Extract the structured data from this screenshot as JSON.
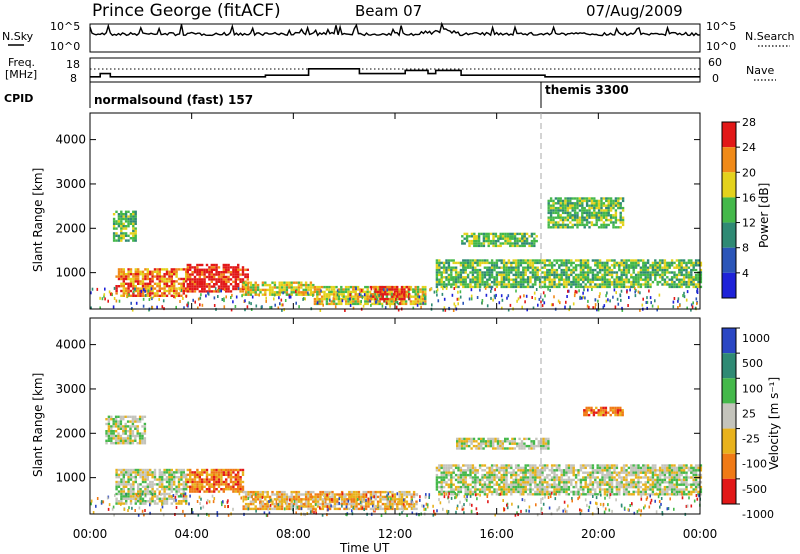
{
  "header": {
    "station": "Prince George (fitACF)",
    "beam": "Beam 07",
    "date": "07/Aug/2009"
  },
  "noise_panel": {
    "left_label": "N.Sky",
    "right_label": "N.Search",
    "tick_top": "10^5",
    "tick_bottom": "10^0",
    "right_tick_top": "10^5",
    "right_tick_bottom": "10^0"
  },
  "freq_panel": {
    "left_label_1": "Freq.",
    "left_label_2": "[MHz]",
    "left_ticks": [
      "18",
      "8"
    ],
    "right_label": "Nave",
    "right_ticks": [
      "60",
      "0"
    ]
  },
  "cpid_panel": {
    "label": "CPID",
    "programs": [
      {
        "name": "normalsound (fast) 157",
        "start_hour": 0
      },
      {
        "name": "themis 3300",
        "start_hour": 18
      }
    ]
  },
  "axes": {
    "x_ticks": [
      "00:00",
      "04:00",
      "08:00",
      "12:00",
      "16:00",
      "20:00",
      "00:00"
    ],
    "x_tick_hours": [
      0,
      4,
      8,
      12,
      16,
      20,
      24
    ],
    "xlabel": "Time UT",
    "ylabel": "Slant Range [km]",
    "y_ticks": [
      "1000",
      "2000",
      "3000",
      "4000"
    ],
    "y_tick_values": [
      1000,
      2000,
      3000,
      4000
    ],
    "ylim": [
      180,
      4600
    ]
  },
  "power_scale": {
    "label": "Power [dB]",
    "ticks": [
      "4",
      "8",
      "12",
      "16",
      "20",
      "24",
      "28"
    ],
    "colors": [
      "#1e22d8",
      "#2b55b8",
      "#2f8a74",
      "#44b84a",
      "#e4d21c",
      "#f08a18",
      "#e21818"
    ]
  },
  "velocity_scale": {
    "label": "Velocity [m s⁻¹]",
    "ticks": [
      "1000",
      "500",
      "100",
      "25",
      "-25",
      "-100",
      "-500",
      "-1000"
    ],
    "colors": [
      "#2b47c4",
      "#2f8a74",
      "#44b84a",
      "#c4c4bc",
      "#e8b21c",
      "#f07a16",
      "#e21818"
    ]
  },
  "chart_data": {
    "type": "heatmap",
    "title": "Prince George (fitACF)",
    "xlabel": "Time UT",
    "ylabel": "Slant Range [km]",
    "x_range_hours": [
      0,
      24
    ],
    "y_range_km": [
      180,
      4600
    ],
    "frequency_steps_mhz": [
      {
        "start": 0.0,
        "end": 0.4,
        "value": 10
      },
      {
        "start": 0.4,
        "end": 0.8,
        "value": 12
      },
      {
        "start": 0.8,
        "end": 1.6,
        "value": 10
      },
      {
        "start": 1.6,
        "end": 6.9,
        "value": 10
      },
      {
        "start": 6.9,
        "end": 8.6,
        "value": 11
      },
      {
        "start": 8.6,
        "end": 10.6,
        "value": 15
      },
      {
        "start": 10.6,
        "end": 11.9,
        "value": 12
      },
      {
        "start": 11.9,
        "end": 12.4,
        "value": 12
      },
      {
        "start": 12.4,
        "end": 13.3,
        "value": 14
      },
      {
        "start": 13.3,
        "end": 13.6,
        "value": 12
      },
      {
        "start": 13.6,
        "end": 14.6,
        "value": 14
      },
      {
        "start": 14.6,
        "end": 15.6,
        "value": 11
      },
      {
        "start": 15.6,
        "end": 17.9,
        "value": 11
      },
      {
        "start": 17.9,
        "end": 24.0,
        "value": 10
      }
    ],
    "power_regions": [
      {
        "t0": 0.9,
        "t1": 1.8,
        "r0": 1700,
        "r1": 2400,
        "level": 3
      },
      {
        "t0": 1.0,
        "t1": 3.8,
        "r0": 500,
        "r1": 1100,
        "level": 5
      },
      {
        "t0": 3.8,
        "t1": 6.2,
        "r0": 600,
        "r1": 1200,
        "level": 6
      },
      {
        "t0": 6.0,
        "t1": 8.8,
        "r0": 500,
        "r1": 800,
        "level": 4
      },
      {
        "t0": 8.8,
        "t1": 13.2,
        "r0": 300,
        "r1": 700,
        "level": 4
      },
      {
        "t0": 11.0,
        "t1": 12.6,
        "r0": 400,
        "r1": 700,
        "level": 6
      },
      {
        "t0": 14.6,
        "t1": 17.6,
        "r0": 1600,
        "r1": 1900,
        "level": 3
      },
      {
        "t0": 13.6,
        "t1": 24.0,
        "r0": 700,
        "r1": 1300,
        "level": 3
      },
      {
        "t0": 18.0,
        "t1": 21.0,
        "r0": 2000,
        "r1": 2700,
        "level": 3
      }
    ],
    "velocity_regions": [
      {
        "t0": 0.6,
        "t1": 2.2,
        "r0": 1800,
        "r1": 2400,
        "level": 3
      },
      {
        "t0": 1.0,
        "t1": 3.8,
        "r0": 400,
        "r1": 1200,
        "level": 3
      },
      {
        "t0": 3.8,
        "t1": 6.0,
        "r0": 700,
        "r1": 1200,
        "level": 5
      },
      {
        "t0": 6.0,
        "t1": 12.8,
        "r0": 300,
        "r1": 700,
        "level": 4
      },
      {
        "t0": 14.4,
        "t1": 18.0,
        "r0": 1650,
        "r1": 1900,
        "level": 3
      },
      {
        "t0": 13.6,
        "t1": 24.0,
        "r0": 600,
        "r1": 1300,
        "level": 3
      },
      {
        "t0": 19.4,
        "t1": 21.0,
        "r0": 2400,
        "r1": 2600,
        "level": 5
      }
    ]
  }
}
